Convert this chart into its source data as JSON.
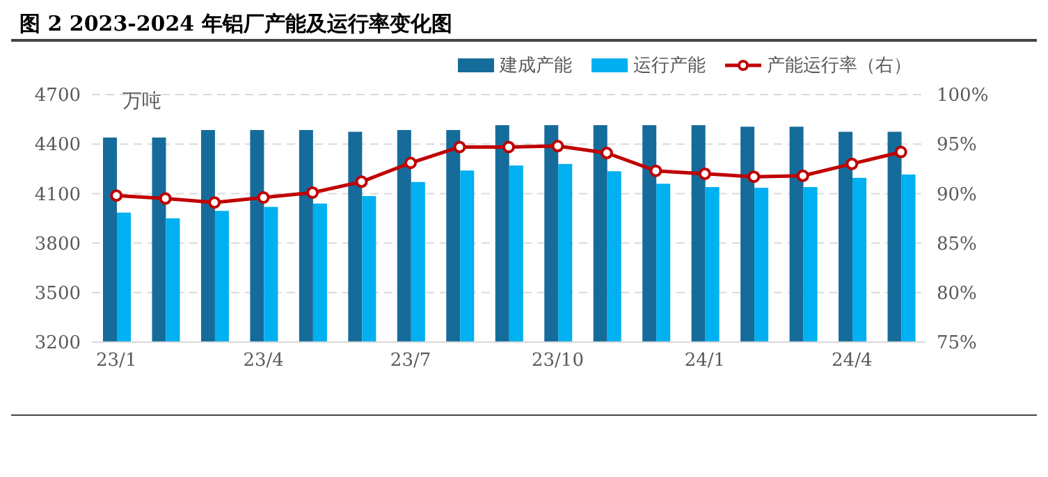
{
  "chart_data": {
    "type": "bar",
    "title": "图 2 2023-2024 年铝厂产能及运行率变化图",
    "ylabel": "万吨",
    "categories": [
      "23/1",
      null,
      null,
      "23/4",
      null,
      null,
      "23/7",
      null,
      null,
      "23/10",
      null,
      null,
      "24/1",
      null,
      null,
      "24/4",
      null
    ],
    "series": [
      {
        "name": "建成产能",
        "color": "#156c9b",
        "values": [
          4440,
          4440,
          4485,
          4485,
          4485,
          4475,
          4485,
          4485,
          4515,
          4515,
          4515,
          4515,
          4515,
          4505,
          4505,
          4475,
          4475
        ]
      },
      {
        "name": "运行产能",
        "color": "#00b0f0",
        "values": [
          3985,
          3950,
          3995,
          4020,
          4040,
          4085,
          4170,
          4240,
          4270,
          4280,
          4235,
          4160,
          4140,
          4135,
          4140,
          4195,
          4215
        ]
      },
      {
        "name": "产能运行率（右）",
        "type": "line",
        "axis": "y2",
        "color": "#c00000",
        "marker": "circle",
        "values": [
          89.8,
          89.5,
          89.1,
          89.6,
          90.1,
          91.2,
          93.1,
          94.7,
          94.7,
          94.8,
          94.1,
          92.3,
          92.0,
          91.7,
          91.8,
          93.0,
          94.2
        ]
      }
    ],
    "ylim": [
      3200,
      4700
    ],
    "yticks": [
      3200,
      3500,
      3800,
      4100,
      4400,
      4700
    ],
    "y2lim": [
      75,
      100
    ],
    "y2ticks": [
      {
        "value": 75,
        "label": "75%"
      },
      {
        "value": 80,
        "label": "80%"
      },
      {
        "value": 85,
        "label": "85%"
      },
      {
        "value": 90,
        "label": "90%"
      },
      {
        "value": 95,
        "label": "95%"
      },
      {
        "value": 100,
        "label": "100%"
      }
    ],
    "grid": "y",
    "legend": "top right"
  }
}
